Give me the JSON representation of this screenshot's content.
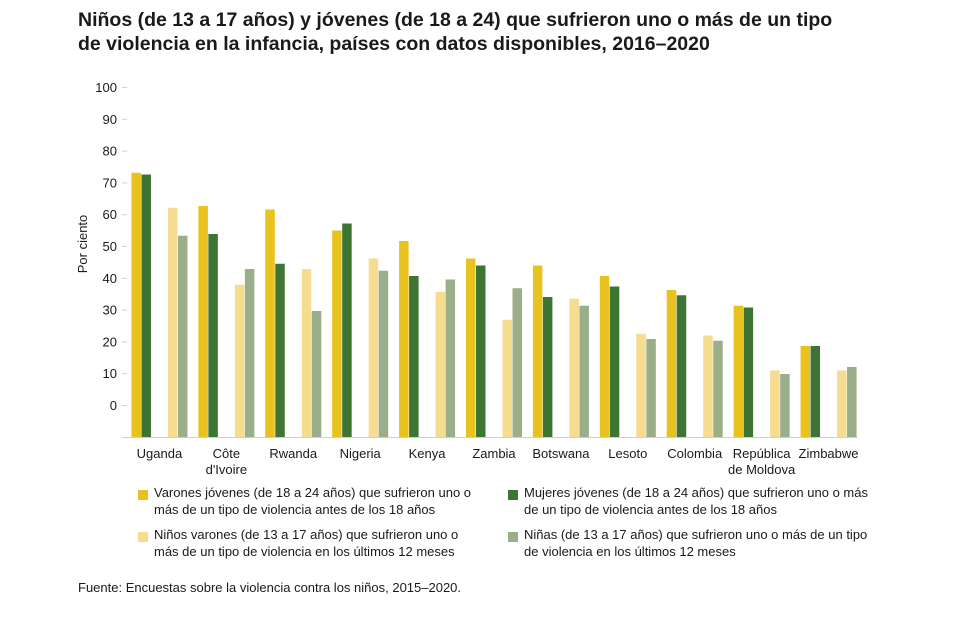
{
  "title": {
    "line1": "Niños (de 13 a 17 años) y jóvenes (de 18 a 24) que sufrieron uno o más de un tipo",
    "line2": "de violencia en la infancia, países con datos disponibles, 2016–2020"
  },
  "source": "Fuente: Encuestas sobre la violencia contra los niños, 2015–2020.",
  "chart_data": {
    "type": "bar",
    "title": "Niños (de 13 a 17 años) y jóvenes (de 18 a 24) que sufrieron uno o más de un tipo de violencia en la infancia, países con datos disponibles, 2016–2020",
    "xlabel": "",
    "ylabel": "Por ciento",
    "ylim": [
      0,
      100
    ],
    "yticks": [
      "100",
      "90",
      "80",
      "70",
      "60",
      "50",
      "40",
      "30",
      "20",
      "10",
      "0"
    ],
    "categories": [
      [
        "Uganda"
      ],
      [
        "Côte",
        "d'Ivoire"
      ],
      [
        "Rwanda"
      ],
      [
        "Nigeria"
      ],
      [
        "Kenya"
      ],
      [
        "Zambia"
      ],
      [
        "Botswana"
      ],
      [
        "Lesoto"
      ],
      [
        "Colombia"
      ],
      [
        "República",
        "de Moldova"
      ],
      [
        "Zimbabwe"
      ]
    ],
    "series": [
      {
        "name": "Varones jóvenes (de 18 a 24 años) que sufrieron uno o más de un tipo de violencia antes de los 18 años",
        "color": "#e8c21e",
        "values": [
          75.5,
          66,
          65,
          59,
          56,
          51,
          49,
          46,
          42,
          37.5,
          26
        ]
      },
      {
        "name": "Mujeres jóvenes (de 18 a 24 años) que sufrieron uno o más de un tipo de violencia antes de los 18 años",
        "color": "#3e7535",
        "values": [
          75,
          58,
          49.5,
          61,
          46,
          49,
          40,
          43,
          40.5,
          37,
          26
        ]
      },
      {
        "name": "Niños varones (de 13 a 17 años) que sufrieron uno o más de un tipo de violencia en los últimos 12 meses",
        "color": "#f5dc8e",
        "values": [
          65.5,
          43.5,
          48,
          51,
          41.5,
          33.5,
          39.5,
          29.5,
          29,
          19,
          19
        ]
      },
      {
        "name": "Niñas (de 13 a 17 años) que sufrieron uno o más de un tipo de violencia en los últimos 12 meses",
        "color": "#9aae8a",
        "values": [
          57.5,
          48,
          36,
          47.5,
          45,
          42.5,
          37.5,
          28,
          27.5,
          18,
          20
        ]
      }
    ],
    "legend": {
      "placement": "bottom",
      "items": [
        {
          "line1": "Varones jóvenes (de 18 a 24 años) que sufrieron uno o",
          "line2": "más de un tipo de violencia antes de los 18 años",
          "color": "#e8c21e"
        },
        {
          "line1": "Mujeres jóvenes (de 18 a 24 años) que sufrieron uno o más",
          "line2": "de un tipo de violencia antes de los 18 años",
          "color": "#3e7535"
        },
        {
          "line1": "Niños varones (de 13 a 17 años) que sufrieron uno o",
          "line2": "más de un tipo de violencia en los últimos 12 meses",
          "color": "#f5dc8e"
        },
        {
          "line1": "Niñas (de 13 a 17 años) que sufrieron uno o más de un tipo",
          "line2": "de violencia en los últimos 12 meses",
          "color": "#9aae8a"
        }
      ]
    }
  }
}
